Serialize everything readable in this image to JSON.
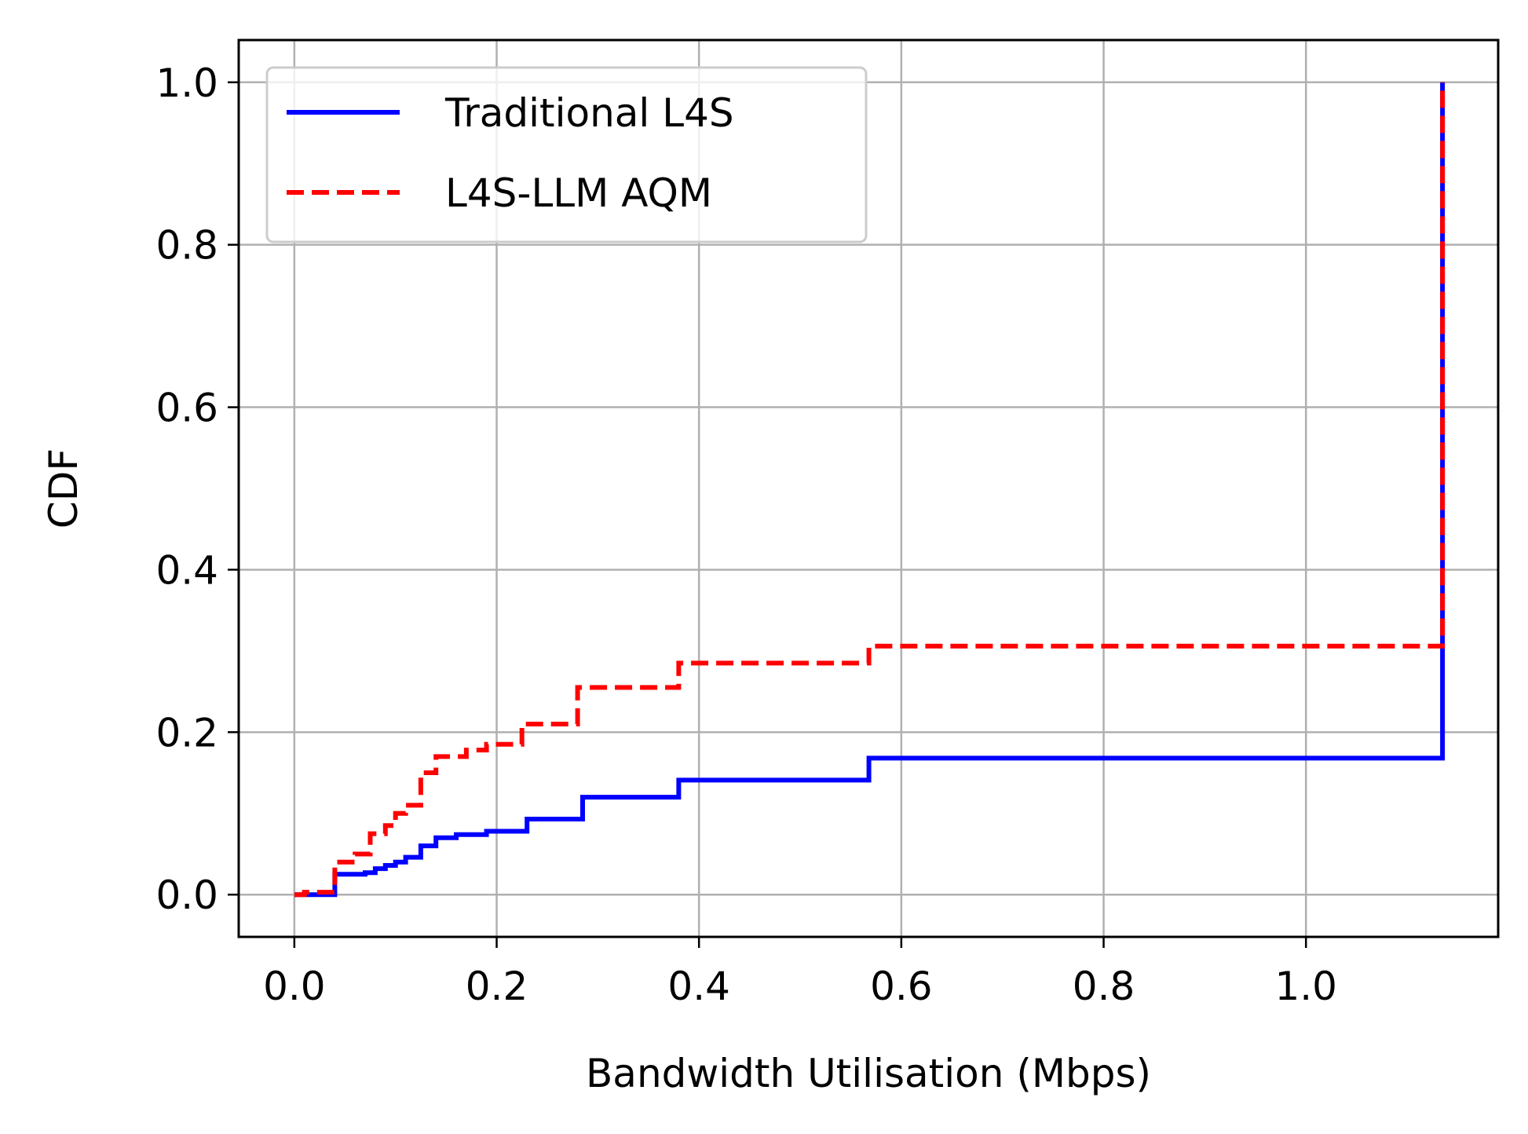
{
  "chart_data": {
    "type": "line",
    "title": "",
    "xlabel": "Bandwidth Utilisation (Mbps)",
    "ylabel": "CDF",
    "xlim": [
      -0.055,
      1.19
    ],
    "ylim": [
      -0.052,
      1.052
    ],
    "xticks": [
      0.0,
      0.2,
      0.4,
      0.6,
      0.8,
      1.0
    ],
    "xtick_labels": [
      "0.0",
      "0.2",
      "0.4",
      "0.6",
      "0.8",
      "1.0"
    ],
    "yticks": [
      0.0,
      0.2,
      0.4,
      0.6,
      0.8,
      1.0
    ],
    "ytick_labels": [
      "0.0",
      "0.2",
      "0.4",
      "0.6",
      "0.8",
      "1.0"
    ],
    "grid": true,
    "legend_position": "top-left",
    "series": [
      {
        "name": "Traditional L4S",
        "color": "#0000ff",
        "style": "solid",
        "step": true,
        "x": [
          0.0,
          0.04,
          0.07,
          0.08,
          0.09,
          0.1,
          0.11,
          0.125,
          0.14,
          0.16,
          0.19,
          0.23,
          0.285,
          0.38,
          0.568,
          1.135,
          1.135
        ],
        "y": [
          0.0,
          0.025,
          0.027,
          0.032,
          0.036,
          0.04,
          0.046,
          0.06,
          0.07,
          0.074,
          0.078,
          0.093,
          0.12,
          0.141,
          0.168,
          0.168,
          1.0
        ]
      },
      {
        "name": "L4S-LLM AQM",
        "color": "#ff0000",
        "style": "dashed",
        "step": true,
        "x": [
          0.0,
          0.01,
          0.04,
          0.06,
          0.075,
          0.09,
          0.1,
          0.11,
          0.125,
          0.14,
          0.17,
          0.19,
          0.225,
          0.28,
          0.38,
          0.568,
          1.135,
          1.135
        ],
        "y": [
          0.0,
          0.003,
          0.04,
          0.05,
          0.075,
          0.085,
          0.1,
          0.11,
          0.15,
          0.17,
          0.178,
          0.185,
          0.21,
          0.255,
          0.285,
          0.306,
          0.306,
          1.0
        ]
      }
    ]
  }
}
